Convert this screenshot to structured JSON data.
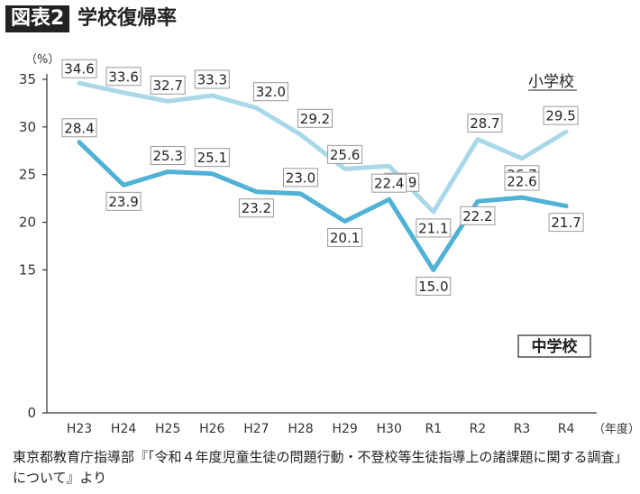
{
  "figure": {
    "badge": "図表2",
    "title": "学校復帰率"
  },
  "source_note": "東京都教育庁指導部『「令和４年度児童生徒の問題行動・不登校等生徒指導上の諸課題に関する調査」について』より",
  "colors": {
    "elementary": "#a9d8e8",
    "junior_high": "#4fb2d6",
    "axis": "#333333",
    "label_border": "#999999"
  },
  "chart_data": {
    "type": "line",
    "y_unit": "（%）",
    "x_unit": "（年度）",
    "categories": [
      "H23",
      "H24",
      "H25",
      "H26",
      "H27",
      "H28",
      "H29",
      "H30",
      "R1",
      "R2",
      "R3",
      "R4"
    ],
    "ylim": [
      0,
      35
    ],
    "yticks": [
      0,
      15,
      20,
      25,
      30,
      35
    ],
    "grid": false,
    "series": [
      {
        "name": "小学校",
        "values": [
          34.6,
          33.6,
          32.7,
          33.3,
          32.0,
          29.2,
          25.6,
          25.9,
          21.1,
          28.7,
          26.7,
          29.5
        ]
      },
      {
        "name": "中学校",
        "values": [
          28.4,
          23.9,
          25.3,
          25.1,
          23.2,
          23.0,
          20.1,
          22.4,
          15.0,
          22.2,
          22.6,
          21.7
        ]
      }
    ]
  }
}
